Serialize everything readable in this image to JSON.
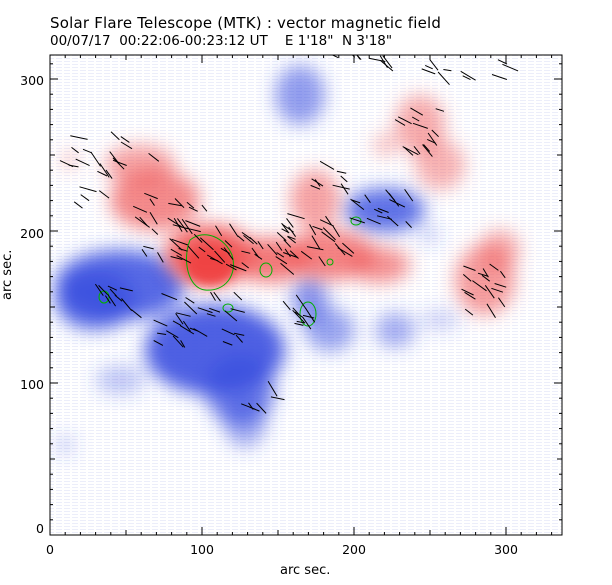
{
  "header": {
    "title": "Solar Flare Telescope (MTK) : vector magnetic field",
    "subtitle": "00/07/17  00:22:06-00:23:12 UT    E 1'18\"  N 3'18\""
  },
  "axes": {
    "xlabel": "arc sec.",
    "ylabel": "arc sec.",
    "xticks": [
      "0",
      "100",
      "200",
      "300"
    ],
    "yticks": [
      "0",
      "100",
      "200",
      "300"
    ],
    "xlim": [
      0,
      340
    ],
    "ylim": [
      0,
      315
    ]
  },
  "colors": {
    "positive": "#f05a5a",
    "negative": "#3a4fe0",
    "contour": "#00b000",
    "vectors": "#000000"
  },
  "icons": [
    "magnetogram-image",
    "field-vector-arrows",
    "green-contours"
  ]
}
